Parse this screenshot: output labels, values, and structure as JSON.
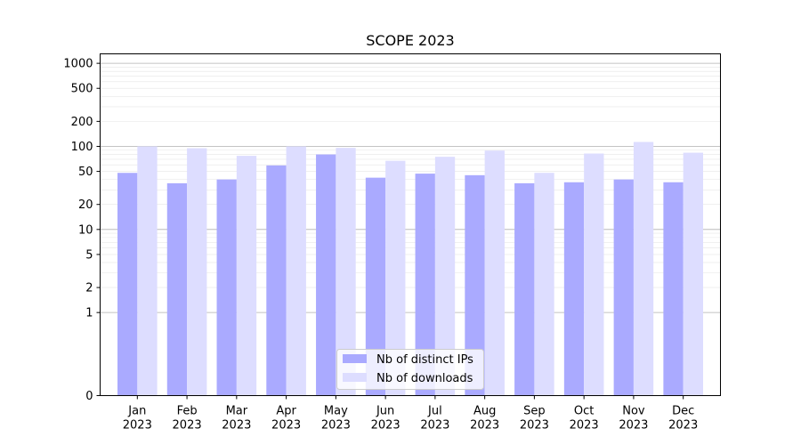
{
  "chart_data": {
    "type": "bar",
    "title": "SCOPE 2023",
    "y_scale": "symlog",
    "grid": true,
    "legend_position": "bottom-center",
    "x_tick_labels": [
      [
        "Jan",
        "2023"
      ],
      [
        "Feb",
        "2023"
      ],
      [
        "Mar",
        "2023"
      ],
      [
        "Apr",
        "2023"
      ],
      [
        "May",
        "2023"
      ],
      [
        "Jun",
        "2023"
      ],
      [
        "Jul",
        "2023"
      ],
      [
        "Aug",
        "2023"
      ],
      [
        "Sep",
        "2023"
      ],
      [
        "Oct",
        "2023"
      ],
      [
        "Nov",
        "2023"
      ],
      [
        "Dec",
        "2023"
      ]
    ],
    "y_ticks": [
      0,
      1,
      2,
      5,
      10,
      20,
      50,
      100,
      200,
      500,
      1000
    ],
    "y_tick_labels": [
      "0",
      "1",
      "2",
      "5",
      "10",
      "20",
      "50",
      "100",
      "200",
      "500",
      "1000"
    ],
    "ylim": [
      0,
      1300
    ],
    "series": [
      {
        "name": "Nb of distinct IPs",
        "color": "#aaaaff",
        "values": [
          48,
          36,
          40,
          59,
          80,
          42,
          47,
          45,
          36,
          37,
          40,
          37
        ]
      },
      {
        "name": "Nb of downloads",
        "color": "#ddddff",
        "values": [
          100,
          95,
          77,
          100,
          96,
          67,
          75,
          89,
          48,
          82,
          113,
          84
        ]
      }
    ]
  }
}
